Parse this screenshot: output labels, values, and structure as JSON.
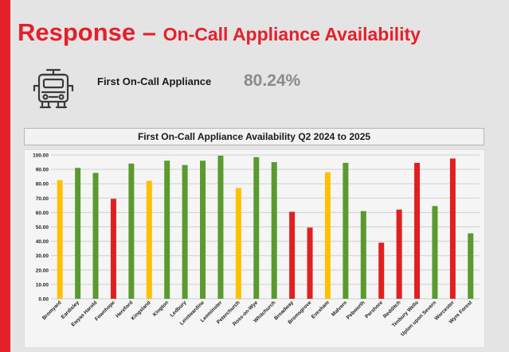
{
  "header": {
    "title_part1": "Response – ",
    "title_part2": "On-Call Appliance Availability"
  },
  "stat": {
    "icon": "fire-engine-icon",
    "label": "First On-Call Appliance",
    "value": "80.24%"
  },
  "colors": {
    "accent": "#e5202a",
    "green": "#5a9a2f",
    "amber": "#ffc000",
    "red": "#e02020"
  },
  "chart_data": {
    "type": "bar",
    "title": "First On-Call Appliance Availability Q2 2024 to 2025",
    "xlabel": "",
    "ylabel": "",
    "ylim": [
      0,
      100
    ],
    "yticks": [
      "0.00",
      "10.00",
      "20.00",
      "30.00",
      "40.00",
      "50.00",
      "60.00",
      "70.00",
      "80.00",
      "90.00",
      "100.00"
    ],
    "grid": true,
    "categories": [
      "Bromyard",
      "Eardisley",
      "Ewyas Harold",
      "Fownhope",
      "Hereford",
      "Kingsland",
      "Kington",
      "Ledbury",
      "Leintwardine",
      "Leominster",
      "Peterchurch",
      "Ross-on-Wye",
      "Whitchurch",
      "Broadway",
      "Bromsgrove",
      "Evesham",
      "Malvern",
      "Pebworth",
      "Pershore",
      "Redditch",
      "Tenbury Wells",
      "Upton upon Severn",
      "Worcester",
      "Wyre Forest"
    ],
    "values": [
      82.5,
      91,
      87.5,
      69.5,
      94,
      82,
      96,
      93,
      96,
      99.5,
      77,
      98.5,
      95,
      60.5,
      49.5,
      88,
      94.5,
      61,
      39,
      62,
      94.5,
      64.5,
      97.5,
      45.5
    ],
    "bar_colors": [
      "amber",
      "green",
      "green",
      "red",
      "green",
      "amber",
      "green",
      "green",
      "green",
      "green",
      "amber",
      "green",
      "green",
      "red",
      "red",
      "amber",
      "green",
      "green",
      "red",
      "red",
      "red",
      "green",
      "red",
      "green"
    ]
  }
}
